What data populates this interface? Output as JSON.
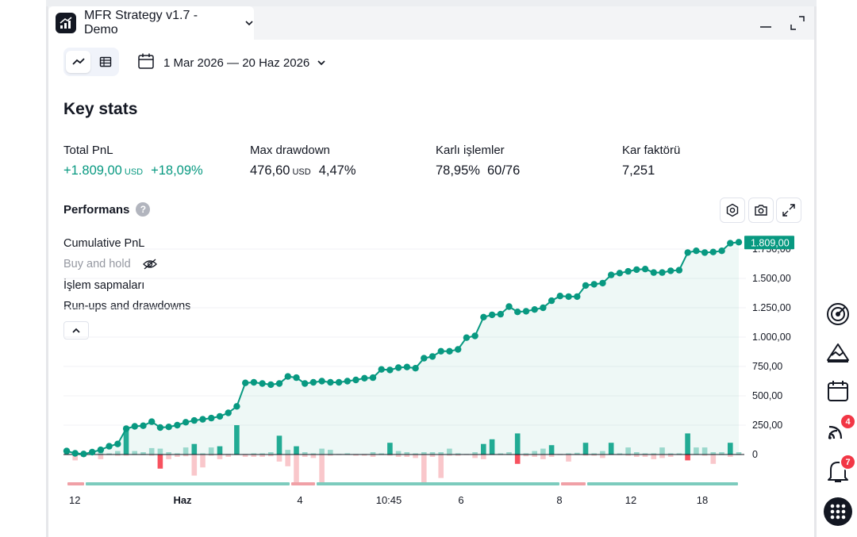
{
  "window": {
    "title": "MFR Strategy v1.7 - Demo"
  },
  "toolbar": {
    "date_range": "1 Mar 2026 — 20 Haz 2026"
  },
  "key_stats": {
    "title": "Key stats",
    "total_pnl": {
      "label": "Total PnL",
      "value": "+1.809,00",
      "currency": "USD",
      "percent": "+18,09%"
    },
    "max_drawdown": {
      "label": "Max drawdown",
      "value": "476,60",
      "currency": "USD",
      "percent": "4,47%"
    },
    "profitable_trades": {
      "label": "Karlı işlemler",
      "percent": "78,95%",
      "ratio": "60/76"
    },
    "profit_factor": {
      "label": "Kar faktörü",
      "value": "7,251"
    }
  },
  "performance": {
    "title": "Performans",
    "help": "?",
    "legend": [
      "Cumulative PnL",
      "Buy and hold",
      "İşlem sapmaları",
      "Run-ups and drawdowns"
    ],
    "last_value_label": "1.809,00"
  },
  "colors": {
    "accent": "#089981",
    "negative": "#f23645"
  },
  "side_rail": {
    "feeds_badge": "4",
    "alerts_badge": "7"
  },
  "chart_data": {
    "type": "line",
    "title": "",
    "series": [
      {
        "name": "Cumulative PnL",
        "values": [
          30,
          10,
          5,
          20,
          40,
          70,
          90,
          220,
          240,
          245,
          280,
          230,
          235,
          250,
          275,
          290,
          300,
          310,
          325,
          355,
          410,
          610,
          615,
          605,
          595,
          605,
          665,
          655,
          605,
          615,
          625,
          615,
          615,
          625,
          635,
          650,
          655,
          725,
          720,
          740,
          745,
          735,
          820,
          835,
          880,
          880,
          895,
          995,
          1010,
          1170,
          1190,
          1195,
          1260,
          1215,
          1220,
          1235,
          1250,
          1310,
          1350,
          1345,
          1345,
          1440,
          1450,
          1460,
          1530,
          1545,
          1560,
          1575,
          1580,
          1550,
          1550,
          1565,
          1570,
          1720,
          1735,
          1720,
          1725,
          1735,
          1800,
          1809
        ]
      }
    ],
    "excursions": {
      "runups": [
        20,
        5,
        0,
        40,
        60,
        10,
        30,
        240,
        30,
        20,
        55,
        50,
        20,
        10,
        60,
        90,
        10,
        60,
        70,
        5,
        250,
        5,
        10,
        10,
        20,
        160,
        40,
        70,
        20,
        10,
        50,
        40,
        5,
        10,
        5,
        5,
        20,
        10,
        100,
        30,
        20,
        10,
        20,
        20,
        20,
        50,
        10,
        5,
        20,
        90,
        130,
        10,
        20,
        180,
        10,
        30,
        50,
        80,
        5,
        10,
        15,
        100,
        10,
        30,
        100,
        10,
        60,
        20,
        10,
        10,
        60,
        10,
        10,
        180,
        60,
        60,
        20,
        20,
        100,
        20
      ],
      "drawdowns": [
        -5,
        -50,
        -20,
        -5,
        -40,
        -5,
        -10,
        -10,
        -5,
        -5,
        -10,
        -120,
        -40,
        -20,
        -15,
        -180,
        -110,
        -10,
        -40,
        -20,
        -5,
        -20,
        -20,
        -20,
        -15,
        -60,
        -100,
        -240,
        -20,
        -30,
        -240,
        -10,
        -5,
        -5,
        -10,
        -10,
        -20,
        -5,
        -10,
        -20,
        -20,
        -30,
        -250,
        -20,
        -200,
        -10,
        -10,
        -5,
        -30,
        -40,
        -5,
        -5,
        -5,
        -80,
        -15,
        -20,
        -40,
        -20,
        -5,
        -60,
        -5,
        -10,
        -10,
        -30,
        -5,
        -5,
        -10,
        -20,
        -20,
        -40,
        -30,
        -20,
        -5,
        -50,
        -5,
        -10,
        -80,
        -5,
        -20,
        -5
      ]
    },
    "trade_band": [
      "loss",
      "profit",
      "loss",
      "profit",
      "loss",
      "profit"
    ],
    "y_ticks": [
      "0",
      "250,00",
      "500,00",
      "750,00",
      "1.000,00",
      "1.250,00",
      "1.500,00",
      "1.750,00"
    ],
    "x_ticks": [
      "12",
      "Haz",
      "4",
      "10:45",
      "6",
      "8",
      "12",
      "18"
    ],
    "ylim": [
      0,
      1809
    ]
  }
}
